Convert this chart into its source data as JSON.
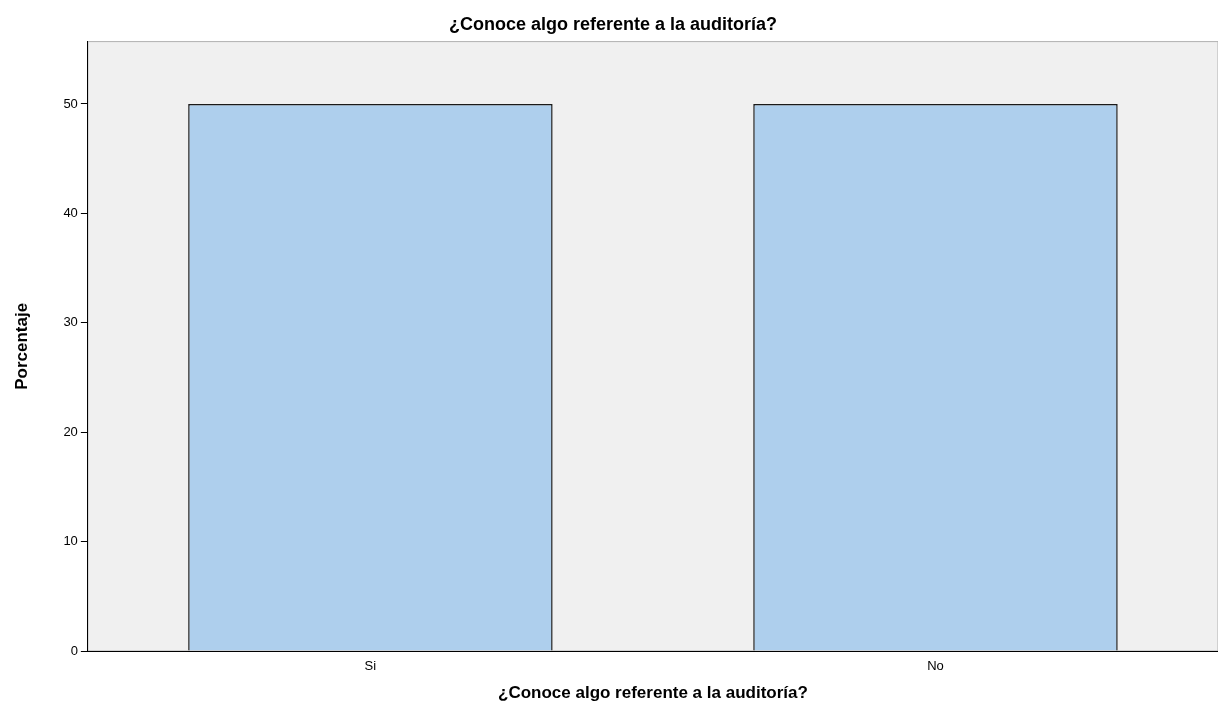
{
  "chart_data": {
    "type": "bar",
    "title": "¿Conoce algo referente a la auditoría?",
    "xlabel": "¿Conoce algo referente a la auditoría?",
    "ylabel": "Porcentaje",
    "categories": [
      "Si",
      "No"
    ],
    "values": [
      50,
      50
    ],
    "color": "#aecfed",
    "ylim": [
      0,
      55.7
    ],
    "yticks": [
      0,
      10,
      20,
      30,
      40,
      50
    ],
    "grid": false,
    "legend": false
  }
}
